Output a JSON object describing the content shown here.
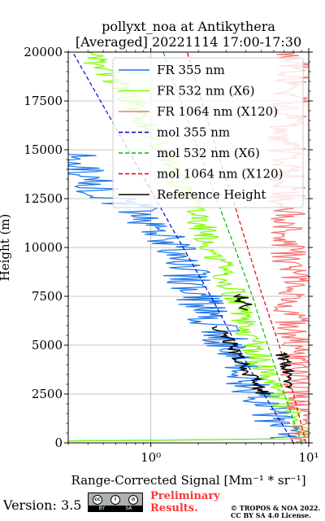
{
  "chart_data": {
    "type": "line",
    "title": [
      "pollyxt_noa at Antikythera",
      "[Averaged] 20221114 17:00-17:30"
    ],
    "xlabel": "Range-Corrected Signal [Mm⁻¹ * sr⁻¹]",
    "ylabel": "Height (m)",
    "xscale": "log",
    "xlim": [
      0.3,
      10
    ],
    "ylim": [
      0,
      20000
    ],
    "xticks": [
      {
        "value": 1,
        "label": "10⁰"
      },
      {
        "value": 10,
        "label": "10¹"
      }
    ],
    "yticks": [
      0,
      2500,
      5000,
      7500,
      10000,
      12500,
      15000,
      17500,
      20000
    ],
    "grid": true,
    "legend_position": "top-right",
    "colors": {
      "fr355": "#1a74e8",
      "fr532": "#7cfc00",
      "fr1064": "#f87171",
      "mol355": "#0000cd",
      "mol532": "#00b800",
      "mol1064": "#e00000",
      "ref": "#000000"
    },
    "series": [
      {
        "name": "FR 355 nm",
        "style": "solid",
        "points": [
          [
            0.3,
            100
          ],
          [
            7,
            200
          ],
          [
            7.5,
            700
          ],
          [
            6.5,
            1000
          ],
          [
            5.5,
            1600
          ],
          [
            4.6,
            2500
          ],
          [
            3.8,
            3500
          ],
          [
            3.2,
            4500
          ],
          [
            2.8,
            5500
          ],
          [
            2.4,
            6500
          ],
          [
            2.0,
            7500
          ],
          [
            1.7,
            8500
          ],
          [
            1.45,
            9500
          ],
          [
            1.2,
            10500
          ],
          [
            0.95,
            11500
          ],
          [
            0.8,
            12000
          ],
          [
            0.6,
            12500
          ],
          [
            0.45,
            13000
          ],
          [
            0.35,
            14000
          ],
          [
            0.3,
            15000
          ]
        ]
      },
      {
        "name": "FR 532 nm (X6)",
        "style": "solid",
        "points": [
          [
            0.3,
            100
          ],
          [
            9,
            200
          ],
          [
            9.3,
            700
          ],
          [
            8,
            1000
          ],
          [
            7.2,
            1600
          ],
          [
            6.2,
            2500
          ],
          [
            5.4,
            3500
          ],
          [
            4.7,
            4500
          ],
          [
            4.2,
            5500
          ],
          [
            3.8,
            6500
          ],
          [
            3.4,
            7500
          ],
          [
            3.0,
            8500
          ],
          [
            2.6,
            9500
          ],
          [
            2.3,
            10500
          ],
          [
            2.0,
            11500
          ],
          [
            1.7,
            12500
          ],
          [
            1.5,
            13500
          ],
          [
            1.3,
            14500
          ],
          [
            1.1,
            15500
          ],
          [
            0.9,
            16500
          ],
          [
            0.75,
            17500
          ],
          [
            0.6,
            18500
          ],
          [
            0.45,
            19500
          ],
          [
            0.4,
            20000
          ]
        ]
      },
      {
        "name": "FR 1064 nm (X120)",
        "style": "solid",
        "points": [
          [
            9.8,
            0
          ],
          [
            9.6,
            1000
          ],
          [
            9.2,
            2000
          ],
          [
            8.8,
            3000
          ],
          [
            8.5,
            4000
          ],
          [
            8.4,
            5000
          ],
          [
            8.0,
            6000
          ],
          [
            7.8,
            7000
          ],
          [
            7.6,
            8000
          ],
          [
            7.8,
            9000
          ],
          [
            7.4,
            10000
          ],
          [
            7.6,
            11000
          ],
          [
            7.2,
            12000
          ],
          [
            7.5,
            13000
          ],
          [
            7.0,
            14000
          ],
          [
            7.4,
            15000
          ],
          [
            7.2,
            16000
          ],
          [
            8.0,
            17000
          ],
          [
            7.5,
            18000
          ],
          [
            8.5,
            19000
          ],
          [
            7.8,
            20000
          ]
        ]
      },
      {
        "name": "mol 355 nm",
        "style": "dashed",
        "points": [
          [
            8.0,
            0
          ],
          [
            5.2,
            2500
          ],
          [
            3.5,
            5000
          ],
          [
            2.4,
            7500
          ],
          [
            1.6,
            10000
          ],
          [
            1.07,
            12500
          ],
          [
            0.72,
            15000
          ],
          [
            0.48,
            17500
          ],
          [
            0.32,
            20000
          ]
        ]
      },
      {
        "name": "mol 532 nm (X6)",
        "style": "dashed",
        "points": [
          [
            9.0,
            0
          ],
          [
            7.0,
            2500
          ],
          [
            5.5,
            5000
          ],
          [
            4.4,
            7500
          ],
          [
            3.4,
            10000
          ],
          [
            2.6,
            12500
          ],
          [
            2.0,
            15000
          ],
          [
            1.55,
            17500
          ],
          [
            1.2,
            20000
          ]
        ]
      },
      {
        "name": "mol 1064 nm (X120)",
        "style": "dashed",
        "points": [
          [
            9.6,
            0
          ],
          [
            8.0,
            2500
          ],
          [
            6.5,
            5000
          ],
          [
            5.1,
            7500
          ],
          [
            4.1,
            10000
          ],
          [
            3.3,
            12500
          ],
          [
            2.6,
            15000
          ],
          [
            2.1,
            17500
          ],
          [
            1.7,
            20000
          ]
        ]
      },
      {
        "name": "Reference Height",
        "style": "solid",
        "segments": [
          [
            [
              5.2,
              2500
            ],
            [
              4.2,
              3500
            ],
            [
              3.5,
              4500
            ],
            [
              3.0,
              5500
            ],
            [
              2.6,
              6000
            ]
          ],
          [
            [
              7.0,
              2800
            ],
            [
              7.4,
              3500
            ],
            [
              7.0,
              4200
            ],
            [
              6.9,
              4600
            ]
          ],
          [
            [
              4.2,
              6800
            ],
            [
              3.8,
              7200
            ],
            [
              3.7,
              7600
            ]
          ]
        ]
      }
    ]
  },
  "footer": {
    "version": "Version: 3.5",
    "cc_top": [
      "cc",
      "i",
      "⊘"
    ],
    "cc_bottom": [
      "BY",
      "SA"
    ],
    "preliminary": [
      "Preliminary",
      "Results."
    ],
    "copyright": [
      "© TROPOS & NOA 2022.",
      "CC BY SA 4.0 License."
    ]
  }
}
